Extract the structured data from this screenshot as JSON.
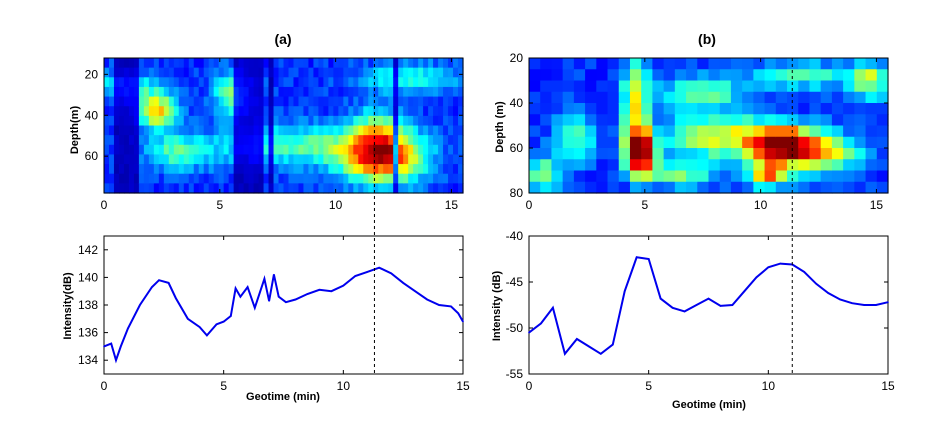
{
  "chart_data": [
    {
      "panel": "(a)",
      "type": "heatmap",
      "title": "(a)",
      "xlabel": "",
      "ylabel": "Depth(m)",
      "xlim": [
        0,
        15.5
      ],
      "ylim": [
        12,
        78
      ],
      "y_reversed": true,
      "xticks": [
        0,
        5,
        10,
        15
      ],
      "yticks": [
        20,
        40,
        60
      ],
      "colormap": "jet",
      "rows": 14,
      "cols": 72,
      "blobs": [
        {
          "x": 12.0,
          "depth": 60,
          "sx": 1.2,
          "sy": 9,
          "intensity": 0.75
        },
        {
          "x": 11.8,
          "depth": 45,
          "sx": 0.8,
          "sy": 8,
          "intensity": 0.2
        },
        {
          "x": 2.3,
          "depth": 38,
          "sx": 0.6,
          "sy": 6,
          "intensity": 0.5
        },
        {
          "x": 5.6,
          "depth": 30,
          "sx": 0.6,
          "sy": 8,
          "intensity": 0.35
        },
        {
          "x": 8.2,
          "depth": 55,
          "sx": 2.4,
          "sy": 7,
          "intensity": 0.28
        },
        {
          "x": 3.2,
          "depth": 58,
          "sx": 1.0,
          "sy": 6,
          "intensity": 0.28
        },
        {
          "x": 13.2,
          "depth": 22,
          "sx": 1.5,
          "sy": 5,
          "intensity": 0.25
        },
        {
          "x": 1.0,
          "depth": 26,
          "sx": 1.0,
          "sy": 5,
          "intensity": 0.25
        }
      ],
      "dark_stripes": [
        0.5,
        0.9,
        1.3,
        5.7,
        6.0,
        6.2,
        6.7,
        7.2,
        12.6
      ]
    },
    {
      "panel": "(a)",
      "type": "line",
      "title": "",
      "xlabel": "Geotime (min)",
      "ylabel": "Intensity(dB)",
      "xlim": [
        0,
        15
      ],
      "ylim": [
        133,
        143
      ],
      "xticks": [
        0,
        5,
        10,
        15
      ],
      "yticks": [
        134,
        136,
        138,
        140,
        142
      ],
      "color": "#0000ee",
      "x": [
        0,
        0.3,
        0.5,
        0.7,
        1.0,
        1.5,
        2.0,
        2.3,
        2.7,
        3.0,
        3.5,
        4.0,
        4.3,
        4.7,
        5.0,
        5.3,
        5.5,
        5.7,
        6.0,
        6.3,
        6.7,
        6.9,
        7.1,
        7.3,
        7.6,
        8.0,
        8.5,
        9.0,
        9.5,
        10.0,
        10.5,
        11.0,
        11.5,
        12.0,
        12.5,
        13.0,
        13.5,
        14.0,
        14.5,
        14.8,
        15.0
      ],
      "y": [
        135.0,
        135.2,
        134.0,
        135.0,
        136.3,
        138.0,
        139.3,
        139.8,
        139.6,
        138.5,
        137.0,
        136.4,
        135.8,
        136.6,
        136.8,
        137.2,
        139.2,
        138.6,
        139.3,
        137.8,
        139.9,
        138.3,
        140.2,
        138.6,
        138.2,
        138.4,
        138.8,
        139.1,
        139.0,
        139.4,
        140.1,
        140.4,
        140.7,
        140.3,
        139.6,
        139.0,
        138.4,
        138.0,
        137.9,
        137.4,
        136.8
      ],
      "marker_x": 11.3
    },
    {
      "panel": "(b)",
      "type": "heatmap",
      "title": "(b)",
      "xlabel": "",
      "ylabel": "Depth (m)",
      "xlim": [
        0,
        15.5
      ],
      "ylim": [
        20,
        80
      ],
      "y_reversed": true,
      "xticks": [
        0,
        5,
        10,
        15
      ],
      "yticks": [
        20,
        40,
        60,
        80
      ],
      "colormap": "jet",
      "rows": 12,
      "cols": 32,
      "blobs": [
        {
          "x": 4.8,
          "depth": 62,
          "sx": 0.45,
          "sy": 7,
          "intensity": 0.9
        },
        {
          "x": 4.6,
          "depth": 40,
          "sx": 0.4,
          "sy": 14,
          "intensity": 0.45
        },
        {
          "x": 10.8,
          "depth": 58,
          "sx": 1.0,
          "sy": 6,
          "intensity": 0.8
        },
        {
          "x": 10.3,
          "depth": 72,
          "sx": 0.6,
          "sy": 4,
          "intensity": 0.55
        },
        {
          "x": 8.0,
          "depth": 55,
          "sx": 1.5,
          "sy": 7,
          "intensity": 0.42
        },
        {
          "x": 12.6,
          "depth": 62,
          "sx": 1.2,
          "sy": 6,
          "intensity": 0.45
        },
        {
          "x": 2.0,
          "depth": 55,
          "sx": 0.6,
          "sy": 8,
          "intensity": 0.3
        },
        {
          "x": 0.6,
          "depth": 72,
          "sx": 0.5,
          "sy": 6,
          "intensity": 0.32
        },
        {
          "x": 7.5,
          "depth": 35,
          "sx": 1.2,
          "sy": 5,
          "intensity": 0.32
        },
        {
          "x": 12.0,
          "depth": 28,
          "sx": 1.5,
          "sy": 4,
          "intensity": 0.3
        },
        {
          "x": 14.8,
          "depth": 30,
          "sx": 0.6,
          "sy": 6,
          "intensity": 0.35
        },
        {
          "x": 6.5,
          "depth": 72,
          "sx": 1.0,
          "sy": 4,
          "intensity": 0.3
        }
      ],
      "dark_stripes": []
    },
    {
      "panel": "(b)",
      "type": "line",
      "title": "",
      "xlabel": "Geotime (min)",
      "ylabel": "Intensity (dB)",
      "xlim": [
        0,
        15
      ],
      "ylim": [
        -55,
        -40
      ],
      "xticks": [
        0,
        5,
        10,
        15
      ],
      "yticks": [
        -55,
        -50,
        -45,
        -40
      ],
      "color": "#0000ee",
      "x": [
        0,
        0.5,
        1.0,
        1.5,
        2.0,
        2.5,
        3.0,
        3.5,
        4.0,
        4.5,
        5.0,
        5.5,
        6.0,
        6.5,
        7.0,
        7.5,
        8.0,
        8.5,
        9.0,
        9.5,
        10.0,
        10.5,
        11.0,
        11.5,
        12.0,
        12.5,
        13.0,
        13.5,
        14.0,
        14.5,
        15.0
      ],
      "y": [
        -50.5,
        -49.5,
        -47.8,
        -52.8,
        -51.2,
        -52.0,
        -52.8,
        -51.8,
        -46.0,
        -42.3,
        -42.5,
        -46.8,
        -47.8,
        -48.2,
        -47.5,
        -46.8,
        -47.6,
        -47.5,
        -46.0,
        -44.5,
        -43.4,
        -43.0,
        -43.1,
        -43.9,
        -45.2,
        -46.2,
        -46.9,
        -47.3,
        -47.5,
        -47.5,
        -47.2
      ],
      "marker_x": 11.0
    }
  ]
}
